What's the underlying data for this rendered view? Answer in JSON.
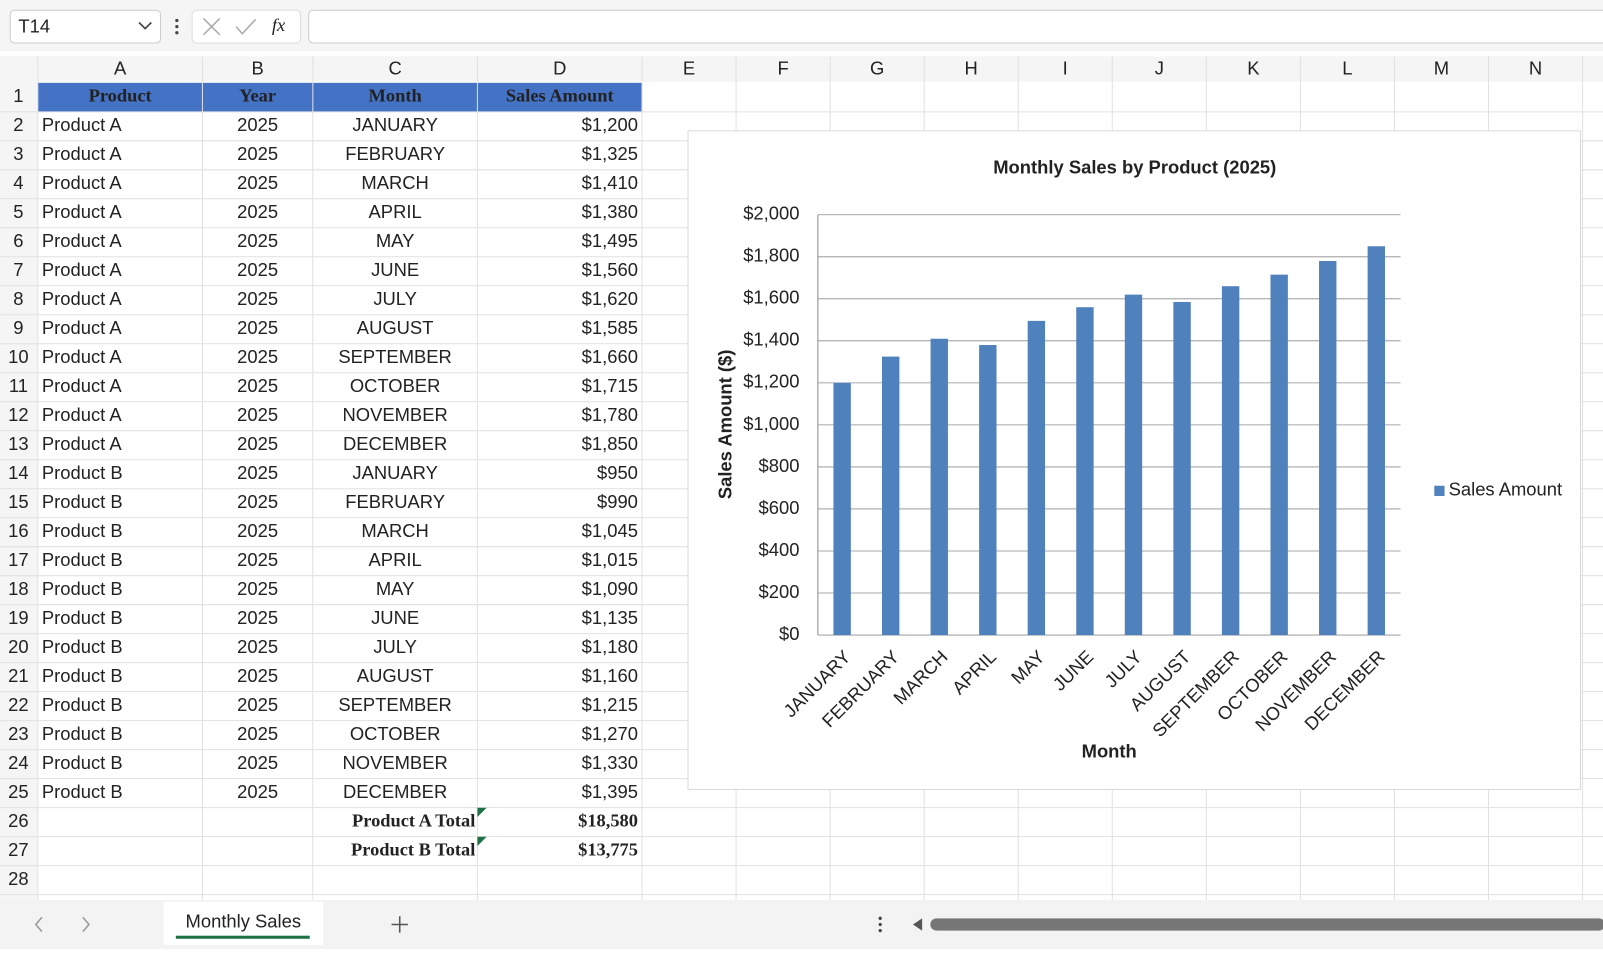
{
  "toolbar": {
    "name_box": "T14",
    "function_icon": "fx"
  },
  "columns": [
    "A",
    "B",
    "C",
    "D",
    "E",
    "F",
    "G",
    "H",
    "I",
    "J",
    "K",
    "L",
    "M",
    "N"
  ],
  "rows": [
    1,
    2,
    3,
    4,
    5,
    6,
    7,
    8,
    9,
    10,
    11,
    12,
    13,
    14,
    15,
    16,
    17,
    18,
    19,
    20,
    21,
    22,
    23,
    24,
    25,
    26,
    27,
    28
  ],
  "table": {
    "header": [
      "Product",
      "Year",
      "Month",
      "Sales Amount"
    ],
    "rows": [
      [
        "Product A",
        "2025",
        "JANUARY",
        "$1,200"
      ],
      [
        "Product A",
        "2025",
        "FEBRUARY",
        "$1,325"
      ],
      [
        "Product A",
        "2025",
        "MARCH",
        "$1,410"
      ],
      [
        "Product A",
        "2025",
        "APRIL",
        "$1,380"
      ],
      [
        "Product A",
        "2025",
        "MAY",
        "$1,495"
      ],
      [
        "Product A",
        "2025",
        "JUNE",
        "$1,560"
      ],
      [
        "Product A",
        "2025",
        "JULY",
        "$1,620"
      ],
      [
        "Product A",
        "2025",
        "AUGUST",
        "$1,585"
      ],
      [
        "Product A",
        "2025",
        "SEPTEMBER",
        "$1,660"
      ],
      [
        "Product A",
        "2025",
        "OCTOBER",
        "$1,715"
      ],
      [
        "Product A",
        "2025",
        "NOVEMBER",
        "$1,780"
      ],
      [
        "Product A",
        "2025",
        "DECEMBER",
        "$1,850"
      ],
      [
        "Product B",
        "2025",
        "JANUARY",
        "$950"
      ],
      [
        "Product B",
        "2025",
        "FEBRUARY",
        "$990"
      ],
      [
        "Product B",
        "2025",
        "MARCH",
        "$1,045"
      ],
      [
        "Product B",
        "2025",
        "APRIL",
        "$1,015"
      ],
      [
        "Product B",
        "2025",
        "MAY",
        "$1,090"
      ],
      [
        "Product B",
        "2025",
        "JUNE",
        "$1,135"
      ],
      [
        "Product B",
        "2025",
        "JULY",
        "$1,180"
      ],
      [
        "Product B",
        "2025",
        "AUGUST",
        "$1,160"
      ],
      [
        "Product B",
        "2025",
        "SEPTEMBER",
        "$1,215"
      ],
      [
        "Product B",
        "2025",
        "OCTOBER",
        "$1,270"
      ],
      [
        "Product B",
        "2025",
        "NOVEMBER",
        "$1,330"
      ],
      [
        "Product B",
        "2025",
        "DECEMBER",
        "$1,395"
      ]
    ],
    "totals": [
      {
        "label": "Product A Total",
        "value": "$18,580"
      },
      {
        "label": "Product B Total",
        "value": "$13,775"
      }
    ]
  },
  "chart_data": {
    "type": "bar",
    "title": "Monthly Sales by Product (2025)",
    "x_label": "Month",
    "y_label": "Sales Amount ($)",
    "categories": [
      "JANUARY",
      "FEBRUARY",
      "MARCH",
      "APRIL",
      "MAY",
      "JUNE",
      "JULY",
      "AUGUST",
      "SEPTEMBER",
      "OCTOBER",
      "NOVEMBER",
      "DECEMBER"
    ],
    "series": [
      {
        "name": "Sales Amount",
        "color": "#4f81bd",
        "values": [
          1200,
          1325,
          1410,
          1380,
          1495,
          1560,
          1620,
          1585,
          1660,
          1715,
          1780,
          1850
        ]
      }
    ],
    "ylim": [
      0,
      2000
    ],
    "yticks": [
      {
        "value": 0,
        "label": "$0"
      },
      {
        "value": 200,
        "label": "$200"
      },
      {
        "value": 400,
        "label": "$400"
      },
      {
        "value": 600,
        "label": "$600"
      },
      {
        "value": 800,
        "label": "$800"
      },
      {
        "value": 1000,
        "label": "$1,000"
      },
      {
        "value": 1200,
        "label": "$1,200"
      },
      {
        "value": 1400,
        "label": "$1,400"
      },
      {
        "value": 1600,
        "label": "$1,600"
      },
      {
        "value": 1800,
        "label": "$1,800"
      },
      {
        "value": 2000,
        "label": "$2,000"
      }
    ],
    "grid": true,
    "legend": "right"
  },
  "sheet_tabs": [
    "Monthly Sales"
  ]
}
